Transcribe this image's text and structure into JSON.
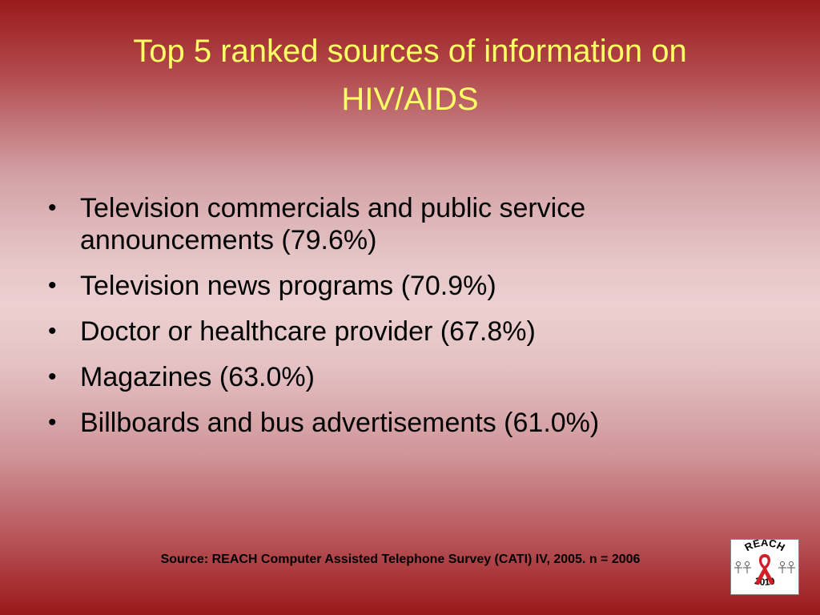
{
  "slide": {
    "title_line1": "Top 5 ranked sources of information on",
    "title_line2": "HIV/AIDS",
    "bullets": [
      "Television commercials and public service announcements (79.6%)",
      "Television news programs (70.9%)",
      "Doctor or healthcare provider (67.8%)",
      "Magazines (63.0%)",
      "Billboards and bus advertisements (61.0%)"
    ],
    "source": "Source: REACH Computer Assisted Telephone Survey (CATI) IV, 2005. n = 2006",
    "logo": {
      "top_text": "REACH",
      "bottom_text": "2010",
      "icon": "red-ribbon-icon"
    }
  },
  "colors": {
    "title": "#ffff66",
    "ribbon": "#d21f26"
  }
}
